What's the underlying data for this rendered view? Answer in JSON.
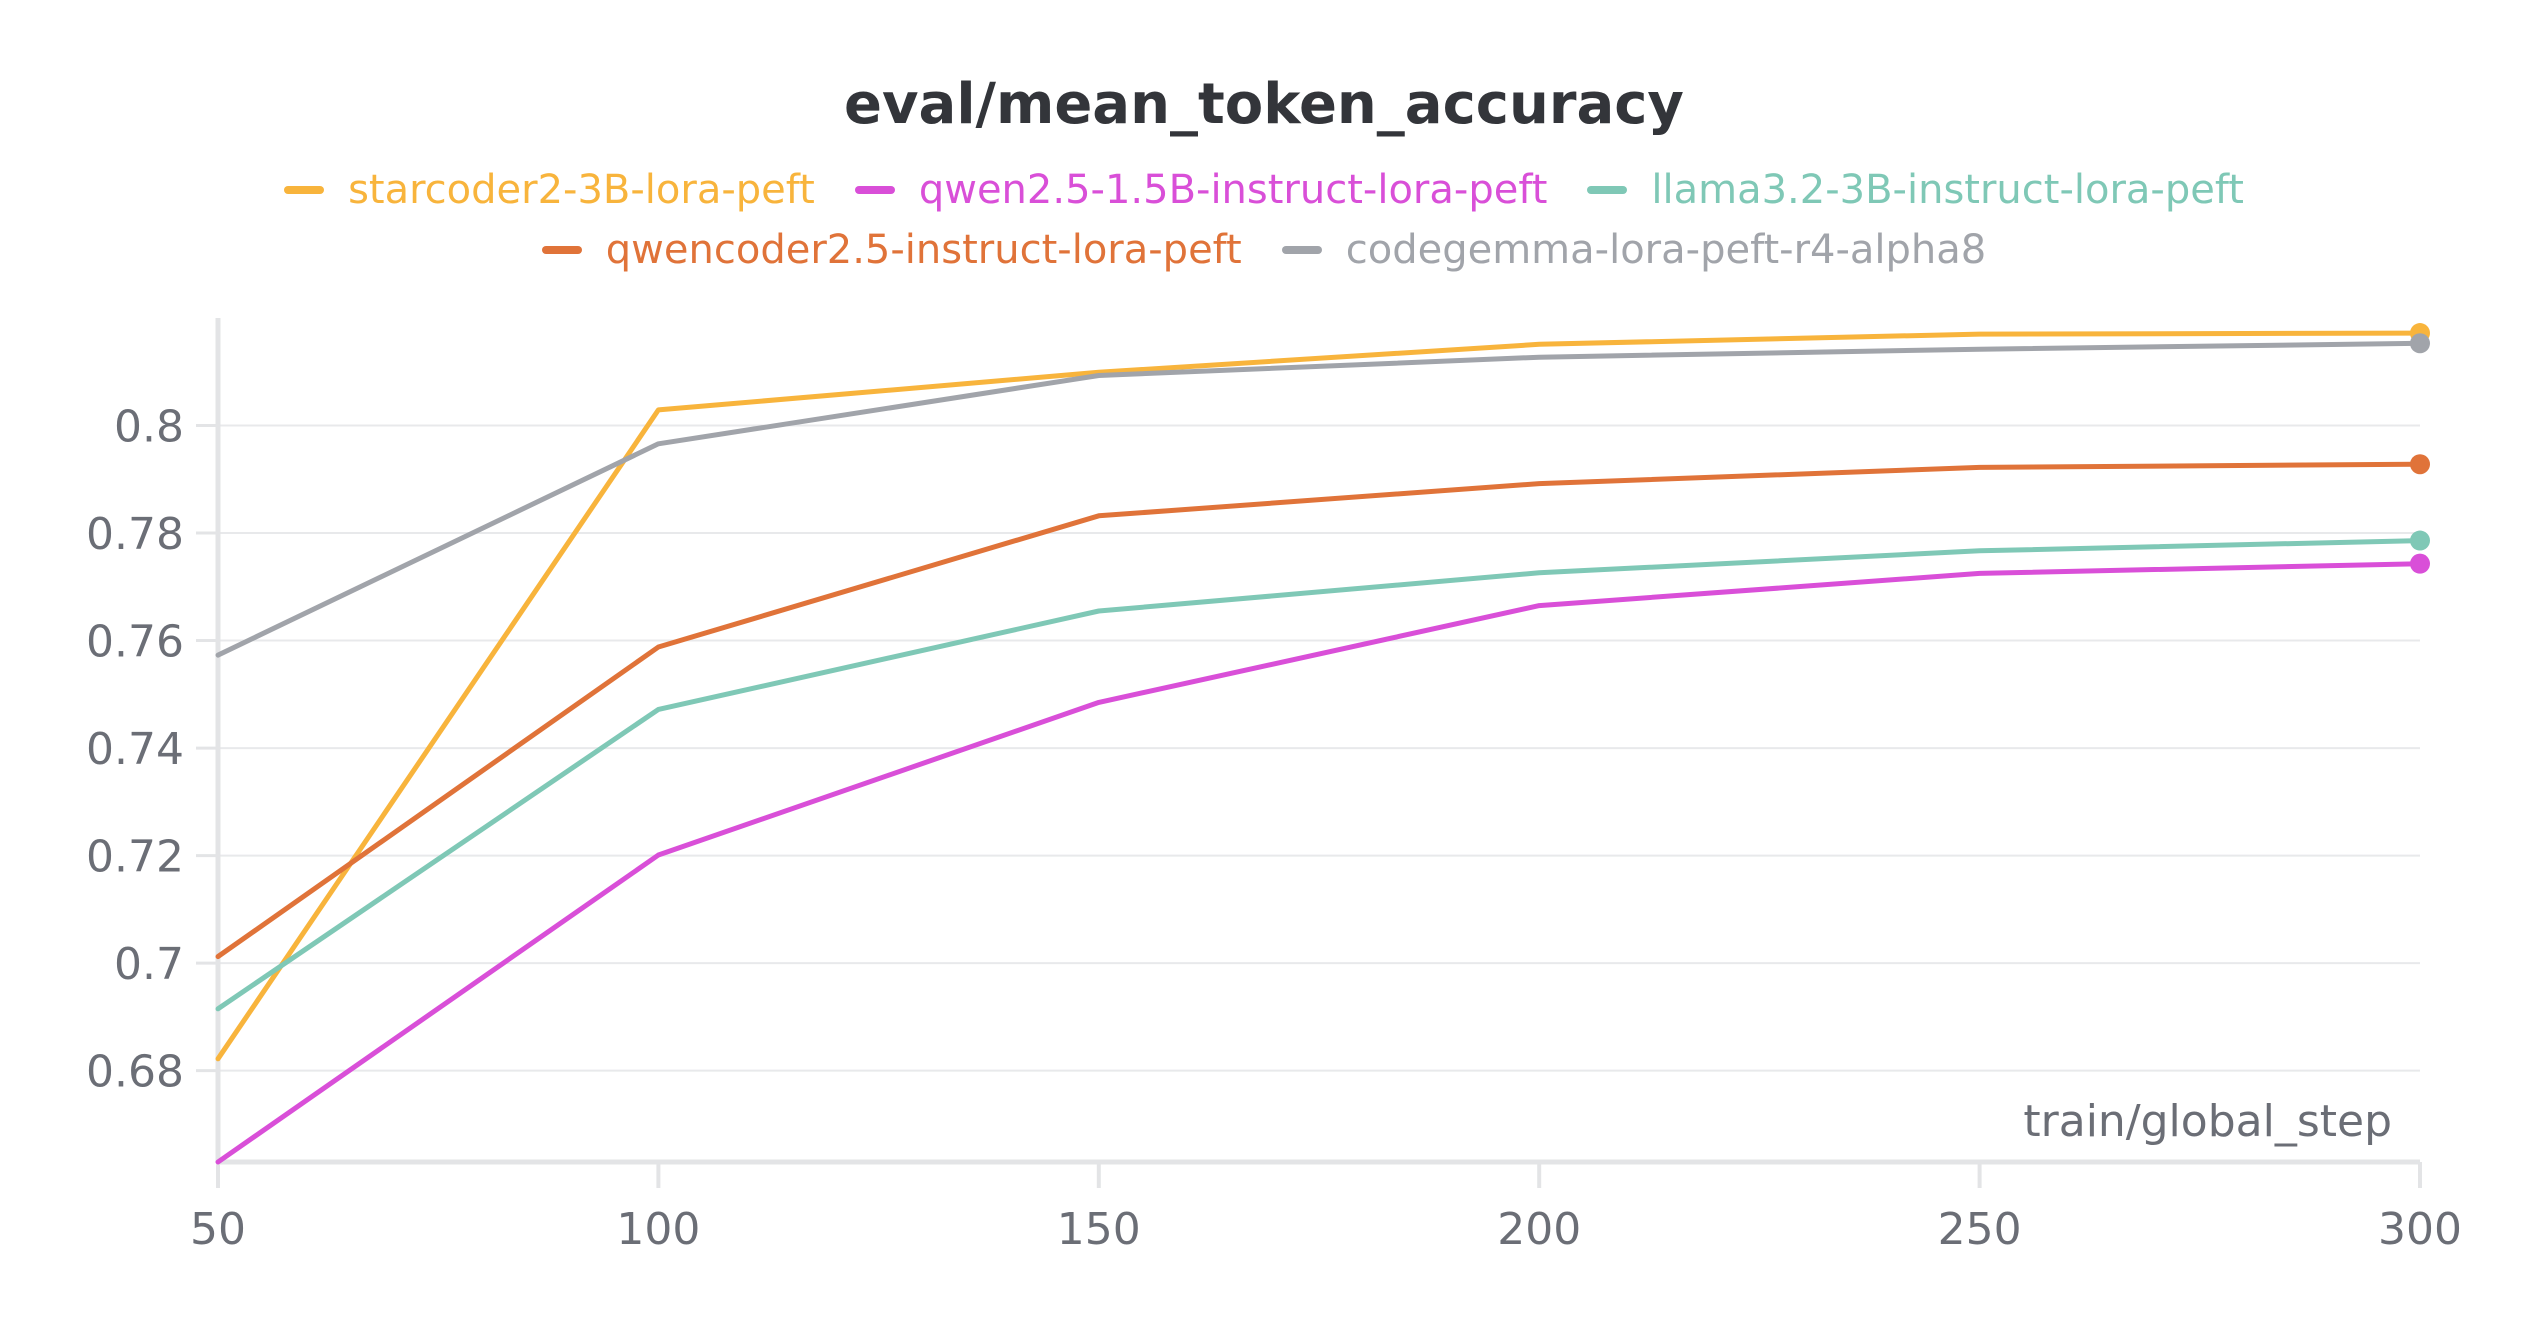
{
  "chart_data": {
    "type": "line",
    "title": "eval/mean_token_accuracy",
    "xlabel": "train/global_step",
    "ylabel": "",
    "x": [
      50,
      100,
      150,
      200,
      250,
      300
    ],
    "xlim": [
      50,
      300
    ],
    "ylim": [
      0.663,
      0.82
    ],
    "xticks": [
      50,
      100,
      150,
      200,
      250,
      300
    ],
    "yticks": [
      0.68,
      0.7,
      0.72,
      0.74,
      0.76,
      0.78,
      0.8
    ],
    "ytick_labels": [
      "0.68",
      "0.7",
      "0.72",
      "0.74",
      "0.76",
      "0.78",
      "0.8"
    ],
    "grid": true,
    "legend_position": "top",
    "series": [
      {
        "name": "starcoder2-3B-lora-peft",
        "color": "#f8b43c",
        "values": [
          0.6822,
          0.8029,
          0.8099,
          0.8151,
          0.817,
          0.8172
        ]
      },
      {
        "name": "qwen2.5-1.5B-instruct-lora-peft",
        "color": "#d94fd8",
        "values": [
          0.663,
          0.7201,
          0.7485,
          0.7665,
          0.7725,
          0.7743
        ]
      },
      {
        "name": "llama3.2-3B-instruct-lora-peft",
        "color": "#7fc8b6",
        "values": [
          0.6915,
          0.7472,
          0.7655,
          0.7726,
          0.7767,
          0.7786
        ]
      },
      {
        "name": "qwencoder2.5-instruct-lora-peft",
        "color": "#e07339",
        "values": [
          0.7012,
          0.7588,
          0.7832,
          0.7892,
          0.7922,
          0.7928
        ]
      },
      {
        "name": "codegemma-lora-peft-r4-alpha8",
        "color": "#a1a4aa",
        "values": [
          0.7573,
          0.7966,
          0.8093,
          0.8127,
          0.8142,
          0.8153
        ]
      }
    ]
  }
}
